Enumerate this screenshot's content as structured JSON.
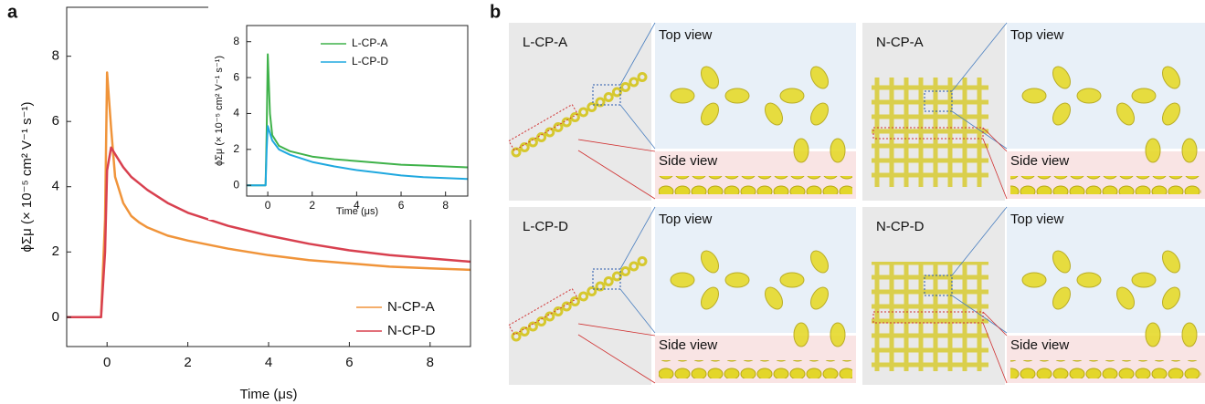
{
  "panel_labels": [
    "a",
    "b"
  ],
  "chart_data": [
    {
      "type": "line",
      "xlabel": "Time (μs)",
      "ylabel": "ϕΣμ (× 10⁻⁵ cm² V⁻¹ s⁻¹)",
      "xlim": [
        -1,
        9
      ],
      "ylim": [
        -0.9,
        9.5
      ],
      "xticks": [
        0,
        2,
        4,
        6,
        8
      ],
      "yticks": [
        0,
        2,
        4,
        6,
        8
      ],
      "legend": "lower right",
      "x": [
        -1,
        -0.5,
        -0.2,
        -0.15,
        -0.05,
        0,
        0.1,
        0.2,
        0.4,
        0.6,
        0.8,
        1,
        1.5,
        2,
        3,
        4,
        5,
        6,
        7,
        8,
        9
      ],
      "series": [
        {
          "name": "N-CP-A",
          "color": "#f0943a",
          "values": [
            0,
            0,
            0,
            0,
            3,
            7.5,
            5.8,
            4.3,
            3.5,
            3.1,
            2.9,
            2.75,
            2.5,
            2.35,
            2.1,
            1.9,
            1.75,
            1.65,
            1.55,
            1.5,
            1.45
          ]
        },
        {
          "name": "N-CP-D",
          "color": "#d8404f",
          "values": [
            0,
            0,
            0,
            0,
            2,
            4.5,
            5.2,
            5.0,
            4.6,
            4.3,
            4.1,
            3.9,
            3.5,
            3.2,
            2.8,
            2.5,
            2.25,
            2.05,
            1.9,
            1.8,
            1.7
          ]
        }
      ]
    },
    {
      "type": "line",
      "xlabel": "Time (μs)",
      "ylabel": "ϕΣμ (× 10⁻⁵ cm² V⁻¹ s⁻¹)",
      "xlim": [
        -0.95,
        9
      ],
      "ylim": [
        -0.6,
        8.9
      ],
      "xticks": [
        0,
        2,
        4,
        6,
        8
      ],
      "yticks": [
        0,
        2,
        4,
        6,
        8
      ],
      "legend": "upper center",
      "x": [
        -1,
        -0.2,
        -0.1,
        -0.05,
        0,
        0.1,
        0.2,
        0.5,
        1,
        2,
        3,
        4,
        5,
        6,
        7,
        8,
        9
      ],
      "series": [
        {
          "name": "L-CP-A",
          "color": "#3fb24a",
          "values": [
            0,
            0,
            0,
            3,
            7.3,
            4,
            2.8,
            2.2,
            1.9,
            1.6,
            1.45,
            1.35,
            1.25,
            1.15,
            1.1,
            1.05,
            1.0
          ]
        },
        {
          "name": "L-CP-D",
          "color": "#1fa8df",
          "values": [
            0,
            0,
            0,
            2,
            3.3,
            2.9,
            2.5,
            2.0,
            1.7,
            1.3,
            1.05,
            0.85,
            0.7,
            0.55,
            0.45,
            0.4,
            0.35
          ]
        }
      ]
    }
  ],
  "structures": [
    {
      "name": "L-CP-A",
      "top_view": "Top view",
      "side_view": "Side view"
    },
    {
      "name": "N-CP-A",
      "top_view": "Top view",
      "side_view": "Side view"
    },
    {
      "name": "L-CP-D",
      "top_view": "Top view",
      "side_view": "Side view"
    },
    {
      "name": "N-CP-D",
      "top_view": "Top view",
      "side_view": "Side view"
    }
  ]
}
